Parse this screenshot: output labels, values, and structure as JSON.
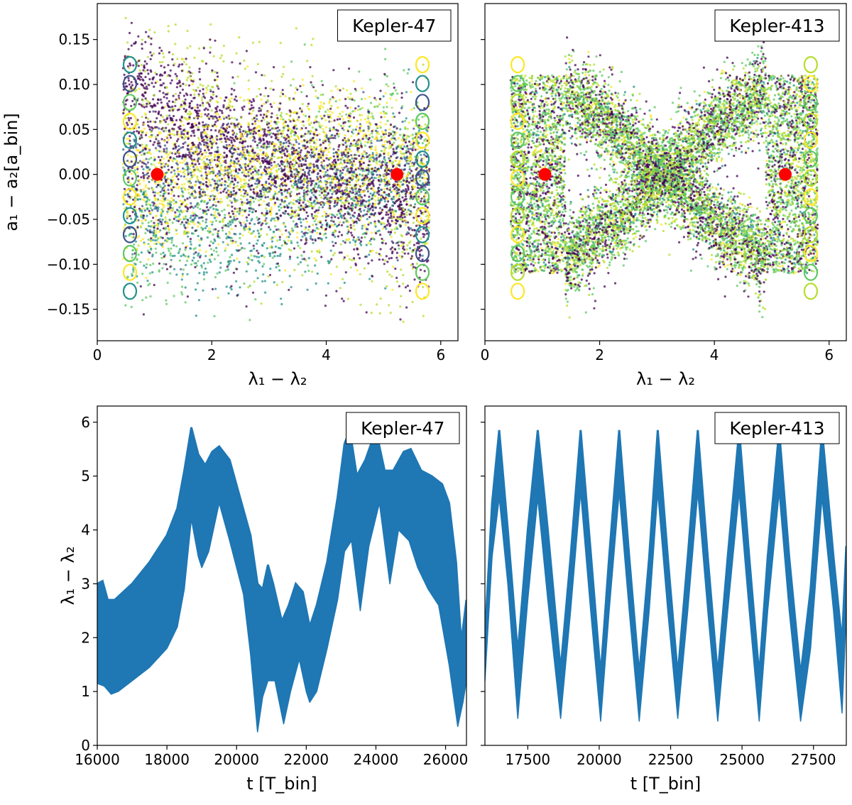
{
  "chart_data": [
    {
      "type": "scatter",
      "panel": "top-left",
      "legend": "Kepler-47",
      "legend_position": "top-right",
      "xlabel": "λ₁ − λ₂",
      "ylabel": "a₁ − a₂[a_bin]",
      "xlim": [
        0,
        6.3
      ],
      "ylim": [
        -0.185,
        0.19
      ],
      "xticks": [
        0,
        2,
        4,
        6
      ],
      "xtick_labels": [
        "0",
        "2",
        "4",
        "6"
      ],
      "yticks": [
        0.15,
        0.1,
        0.05,
        0.0,
        -0.05,
        -0.1,
        -0.15
      ],
      "ytick_labels": [
        "0.15",
        "0.10",
        "0.05",
        "0.00",
        "−0.05",
        "−0.10",
        "−0.15"
      ],
      "series_colormap": [
        "#440154",
        "#3b528b",
        "#21918c",
        "#5ec962",
        "#b5de2b",
        "#fde725"
      ],
      "equilibria": [
        {
          "x": 1.047,
          "y": 0.0
        },
        {
          "x": 5.236,
          "y": 0.0
        }
      ],
      "equilibrium_color": "#ff0000"
    },
    {
      "type": "scatter",
      "panel": "top-right",
      "legend": "Kepler-413",
      "legend_position": "top-right",
      "xlabel": "λ₁ − λ₂",
      "xlim": [
        0,
        6.3
      ],
      "ylim": [
        -0.185,
        0.19
      ],
      "xticks": [
        0,
        2,
        4,
        6
      ],
      "xtick_labels": [
        "0",
        "2",
        "4",
        "6"
      ],
      "yticks": [
        0.15,
        0.1,
        0.05,
        0.0,
        -0.05,
        -0.1,
        -0.15
      ],
      "series_colormap": [
        "#440154",
        "#3b528b",
        "#21918c",
        "#5ec962",
        "#b5de2b",
        "#fde725"
      ],
      "equilibria": [
        {
          "x": 1.047,
          "y": 0.0
        },
        {
          "x": 5.236,
          "y": 0.0
        }
      ],
      "equilibrium_color": "#ff0000"
    },
    {
      "type": "area",
      "panel": "bottom-left",
      "legend": "Kepler-47",
      "legend_position": "top-right",
      "xlabel": "t [T_bin]",
      "ylabel": "λ₁ − λ₂",
      "xlim": [
        16000,
        26600
      ],
      "ylim": [
        0,
        6.3
      ],
      "xticks": [
        16000,
        18000,
        20000,
        22000,
        24000,
        26000
      ],
      "xtick_labels": [
        "16000",
        "18000",
        "20000",
        "22000",
        "24000",
        "26000"
      ],
      "yticks": [
        0,
        1,
        2,
        3,
        4,
        5,
        6
      ],
      "ytick_labels": [
        "0",
        "1",
        "2",
        "3",
        "4",
        "5",
        "6"
      ],
      "color": "#1f77b4",
      "upper": [
        [
          16000,
          3.0
        ],
        [
          16150,
          3.05
        ],
        [
          16300,
          2.7
        ],
        [
          16500,
          2.7
        ],
        [
          17000,
          3.0
        ],
        [
          17500,
          3.4
        ],
        [
          18000,
          3.9
        ],
        [
          18300,
          4.4
        ],
        [
          18500,
          5.1
        ],
        [
          18700,
          5.9
        ],
        [
          18900,
          5.4
        ],
        [
          19100,
          5.2
        ],
        [
          19300,
          5.45
        ],
        [
          19500,
          5.55
        ],
        [
          19800,
          5.3
        ],
        [
          20100,
          4.6
        ],
        [
          20400,
          3.9
        ],
        [
          20600,
          3.0
        ],
        [
          20750,
          2.9
        ],
        [
          20900,
          3.35
        ],
        [
          21050,
          3.0
        ],
        [
          21300,
          2.3
        ],
        [
          21500,
          2.6
        ],
        [
          21700,
          3.0
        ],
        [
          21900,
          2.85
        ],
        [
          22100,
          2.2
        ],
        [
          22300,
          2.6
        ],
        [
          22600,
          3.4
        ],
        [
          22900,
          4.6
        ],
        [
          23100,
          5.6
        ],
        [
          23250,
          5.85
        ],
        [
          23450,
          5.0
        ],
        [
          23700,
          5.3
        ],
        [
          24000,
          5.85
        ],
        [
          24250,
          5.1
        ],
        [
          24500,
          5.1
        ],
        [
          24800,
          5.45
        ],
        [
          25000,
          5.5
        ],
        [
          25300,
          5.1
        ],
        [
          25600,
          5.0
        ],
        [
          25900,
          4.85
        ],
        [
          26100,
          4.5
        ],
        [
          26300,
          3.4
        ],
        [
          26450,
          1.9
        ],
        [
          26600,
          2.7
        ]
      ],
      "lower": [
        [
          16000,
          1.15
        ],
        [
          16200,
          1.1
        ],
        [
          16400,
          0.95
        ],
        [
          16600,
          1.0
        ],
        [
          17000,
          1.2
        ],
        [
          17500,
          1.45
        ],
        [
          18000,
          1.8
        ],
        [
          18300,
          2.2
        ],
        [
          18500,
          2.9
        ],
        [
          18700,
          4.2
        ],
        [
          18900,
          3.5
        ],
        [
          19000,
          3.3
        ],
        [
          19200,
          3.6
        ],
        [
          19500,
          4.5
        ],
        [
          19800,
          3.8
        ],
        [
          20000,
          3.3
        ],
        [
          20200,
          2.8
        ],
        [
          20400,
          1.7
        ],
        [
          20600,
          0.25
        ],
        [
          20750,
          0.9
        ],
        [
          20900,
          1.2
        ],
        [
          21100,
          1.2
        ],
        [
          21350,
          0.4
        ],
        [
          21550,
          1.0
        ],
        [
          21800,
          1.6
        ],
        [
          22000,
          1.0
        ],
        [
          22100,
          0.8
        ],
        [
          22300,
          1.0
        ],
        [
          22600,
          1.8
        ],
        [
          22900,
          2.7
        ],
        [
          23100,
          3.6
        ],
        [
          23300,
          3.8
        ],
        [
          23550,
          2.5
        ],
        [
          23800,
          3.7
        ],
        [
          24100,
          4.5
        ],
        [
          24400,
          3.0
        ],
        [
          24650,
          4.0
        ],
        [
          24950,
          3.8
        ],
        [
          25200,
          3.3
        ],
        [
          25500,
          2.9
        ],
        [
          25800,
          2.6
        ],
        [
          26100,
          1.5
        ],
        [
          26350,
          0.35
        ],
        [
          26500,
          0.8
        ],
        [
          26600,
          1.2
        ]
      ]
    },
    {
      "type": "area",
      "panel": "bottom-right",
      "legend": "Kepler-413",
      "legend_position": "top-right",
      "xlabel": "t [T_bin]",
      "xlim": [
        16000,
        28650
      ],
      "ylim": [
        0,
        6.3
      ],
      "xticks": [
        17500,
        20000,
        22500,
        25000,
        27500
      ],
      "xtick_labels": [
        "17500",
        "20000",
        "22500",
        "25000",
        "27500"
      ],
      "yticks": [
        0,
        1,
        2,
        3,
        4,
        5,
        6
      ],
      "color": "#1f77b4",
      "upper": [
        [
          16000,
          2.0
        ],
        [
          16250,
          4.5
        ],
        [
          16500,
          5.85
        ],
        [
          16800,
          4.0
        ],
        [
          17150,
          1.7
        ],
        [
          17500,
          4.0
        ],
        [
          17850,
          5.85
        ],
        [
          18200,
          4.0
        ],
        [
          18650,
          1.4
        ],
        [
          19000,
          3.5
        ],
        [
          19350,
          5.85
        ],
        [
          19700,
          3.6
        ],
        [
          20050,
          1.3
        ],
        [
          20350,
          3.5
        ],
        [
          20700,
          5.85
        ],
        [
          21050,
          3.5
        ],
        [
          21400,
          1.3
        ],
        [
          21750,
          3.5
        ],
        [
          22050,
          5.85
        ],
        [
          22400,
          3.5
        ],
        [
          22750,
          1.3
        ],
        [
          23100,
          3.5
        ],
        [
          23450,
          5.85
        ],
        [
          23800,
          3.5
        ],
        [
          24150,
          1.3
        ],
        [
          24500,
          3.5
        ],
        [
          24900,
          5.85
        ],
        [
          25250,
          3.5
        ],
        [
          25600,
          1.3
        ],
        [
          25900,
          3.5
        ],
        [
          26300,
          5.85
        ],
        [
          26650,
          3.5
        ],
        [
          27050,
          1.3
        ],
        [
          27400,
          2.9
        ],
        [
          27800,
          5.85
        ],
        [
          28200,
          3.5
        ],
        [
          28500,
          1.9
        ],
        [
          28650,
          3.7
        ]
      ],
      "lower": [
        [
          16000,
          1.2
        ],
        [
          16250,
          3.5
        ],
        [
          16500,
          4.6
        ],
        [
          16800,
          3.0
        ],
        [
          17150,
          0.5
        ],
        [
          17500,
          2.7
        ],
        [
          17850,
          4.6
        ],
        [
          18200,
          2.7
        ],
        [
          18650,
          0.5
        ],
        [
          19000,
          2.5
        ],
        [
          19350,
          4.7
        ],
        [
          19700,
          2.5
        ],
        [
          20050,
          0.45
        ],
        [
          20350,
          2.5
        ],
        [
          20700,
          4.7
        ],
        [
          21050,
          2.5
        ],
        [
          21400,
          0.45
        ],
        [
          21750,
          2.5
        ],
        [
          22050,
          4.7
        ],
        [
          22400,
          2.5
        ],
        [
          22750,
          0.5
        ],
        [
          23100,
          2.5
        ],
        [
          23450,
          4.7
        ],
        [
          23800,
          2.5
        ],
        [
          24150,
          0.45
        ],
        [
          24500,
          2.5
        ],
        [
          24900,
          4.7
        ],
        [
          25250,
          2.5
        ],
        [
          25600,
          0.45
        ],
        [
          25900,
          2.5
        ],
        [
          26300,
          4.7
        ],
        [
          26650,
          2.5
        ],
        [
          27050,
          0.45
        ],
        [
          27400,
          1.8
        ],
        [
          27800,
          4.6
        ],
        [
          28200,
          2.5
        ],
        [
          28500,
          0.6
        ],
        [
          28650,
          2.5
        ]
      ]
    }
  ]
}
